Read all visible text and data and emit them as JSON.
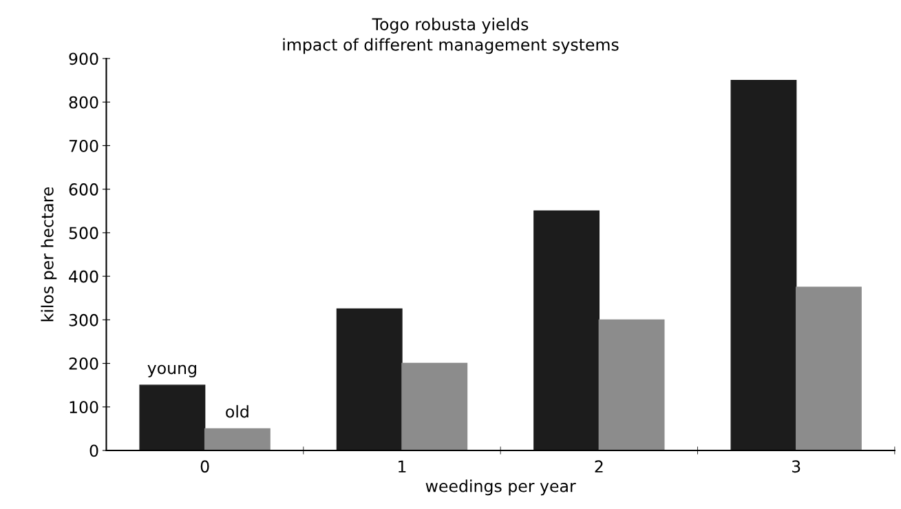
{
  "chart_data": {
    "type": "bar",
    "title": "Togo robusta yields",
    "subtitle": "impact of different management systems",
    "xlabel": "weedings per year",
    "ylabel": "kilos per hectare",
    "categories": [
      "0",
      "1",
      "2",
      "3"
    ],
    "series": [
      {
        "name": "young",
        "color": "#1c1c1c",
        "values": [
          150,
          325,
          550,
          850
        ]
      },
      {
        "name": "old",
        "color": "#8c8c8c",
        "values": [
          50,
          200,
          300,
          375
        ]
      }
    ],
    "ylim": [
      0,
      900
    ],
    "yticks": [
      0,
      100,
      200,
      300,
      400,
      500,
      600,
      700,
      800,
      900
    ],
    "grid": false,
    "legend": false
  }
}
